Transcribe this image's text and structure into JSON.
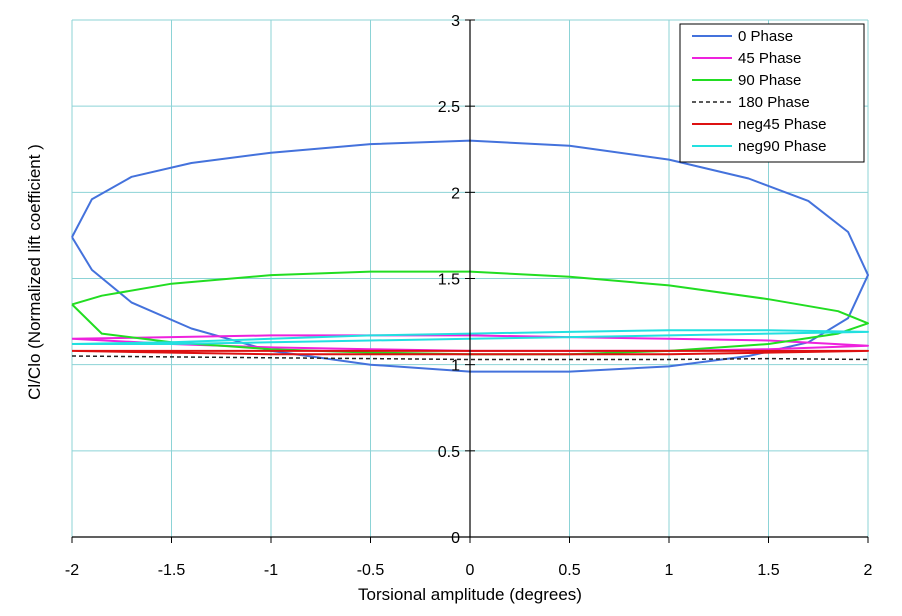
{
  "chart_data": {
    "type": "line",
    "title": "",
    "xlabel": "Torsional amplitude (degrees)",
    "ylabel": "Cl/Clo (Normalized  lift coefficient )",
    "xlim": [
      -2,
      2
    ],
    "ylim": [
      0,
      3
    ],
    "x_ticks": [
      -2,
      -1.5,
      -1,
      -0.5,
      0,
      0.5,
      1,
      1.5,
      2
    ],
    "y_ticks": [
      0,
      0.5,
      1,
      1.5,
      2,
      2.5,
      3
    ],
    "x_tick_labels": [
      "-2",
      "-1.5",
      "-1",
      "-0.5",
      "0",
      "0.5",
      "1",
      "1.5",
      "2"
    ],
    "y_tick_labels": [
      "0",
      "0.5",
      "1",
      "1.5",
      "2",
      "2.5",
      "3"
    ],
    "grid": true,
    "legend_position": "top-right",
    "series": [
      {
        "name": "0 Phase",
        "color": "#4472dc",
        "dash": "solid",
        "x": [
          -2,
          -1.9,
          -1.7,
          -1.4,
          -1.0,
          -0.5,
          0,
          0.5,
          1.0,
          1.4,
          1.7,
          1.9,
          2,
          1.9,
          1.7,
          1.4,
          1.0,
          0.5,
          0,
          -0.5,
          -1.0,
          -1.4,
          -1.7,
          -1.9,
          -2
        ],
        "y": [
          1.74,
          1.96,
          2.09,
          2.17,
          2.23,
          2.28,
          2.3,
          2.27,
          2.19,
          2.08,
          1.95,
          1.77,
          1.52,
          1.27,
          1.13,
          1.05,
          0.99,
          0.96,
          0.96,
          1.0,
          1.08,
          1.21,
          1.36,
          1.55,
          1.74
        ]
      },
      {
        "name": "45 Phase",
        "color": "#ee22dd",
        "dash": "solid",
        "x": [
          -2,
          -1.5,
          -1,
          -0.5,
          0,
          0.5,
          1,
          1.5,
          2,
          1.5,
          1,
          0.5,
          0,
          -0.5,
          -1,
          -1.5,
          -2
        ],
        "y": [
          1.15,
          1.16,
          1.17,
          1.17,
          1.17,
          1.16,
          1.15,
          1.14,
          1.11,
          1.09,
          1.08,
          1.08,
          1.08,
          1.09,
          1.1,
          1.12,
          1.15
        ]
      },
      {
        "name": "90 Phase",
        "color": "#22dd22",
        "dash": "solid",
        "x": [
          -2,
          -1.85,
          -1.5,
          -1,
          -0.5,
          0,
          0.5,
          1,
          1.5,
          1.85,
          2,
          1.85,
          1.5,
          1,
          0.5,
          0,
          -0.5,
          -1,
          -1.5,
          -1.85,
          -2
        ],
        "y": [
          1.35,
          1.4,
          1.47,
          1.52,
          1.54,
          1.54,
          1.51,
          1.46,
          1.38,
          1.31,
          1.24,
          1.18,
          1.12,
          1.08,
          1.06,
          1.06,
          1.07,
          1.09,
          1.13,
          1.18,
          1.35
        ]
      },
      {
        "name": "180 Phase",
        "color": "#222222",
        "dash": "dashed",
        "x": [
          -2,
          -1.5,
          -1,
          -0.5,
          0,
          0.5,
          1,
          1.5,
          2
        ],
        "y": [
          1.05,
          1.045,
          1.04,
          1.035,
          1.03,
          1.03,
          1.03,
          1.035,
          1.03
        ]
      },
      {
        "name": "neg45 Phase",
        "color": "#dd1111",
        "dash": "solid",
        "x": [
          -2,
          -1.5,
          -1,
          -0.5,
          0,
          0.5,
          1,
          1.5,
          2,
          1.5,
          1,
          0.5,
          0,
          -0.5,
          -1,
          -1.5,
          -2
        ],
        "y": [
          1.08,
          1.08,
          1.08,
          1.08,
          1.08,
          1.08,
          1.08,
          1.08,
          1.08,
          1.07,
          1.06,
          1.06,
          1.06,
          1.06,
          1.06,
          1.07,
          1.08
        ]
      },
      {
        "name": "neg90 Phase",
        "color": "#22e0e0",
        "dash": "solid",
        "x": [
          -2,
          -1.5,
          -1,
          -0.5,
          0,
          0.5,
          1,
          1.5,
          2,
          1.5,
          1,
          0.5,
          0,
          -0.5,
          -1,
          -1.5,
          -2
        ],
        "y": [
          1.12,
          1.13,
          1.15,
          1.17,
          1.18,
          1.19,
          1.2,
          1.2,
          1.19,
          1.18,
          1.17,
          1.16,
          1.15,
          1.14,
          1.13,
          1.12,
          1.12
        ]
      }
    ]
  }
}
